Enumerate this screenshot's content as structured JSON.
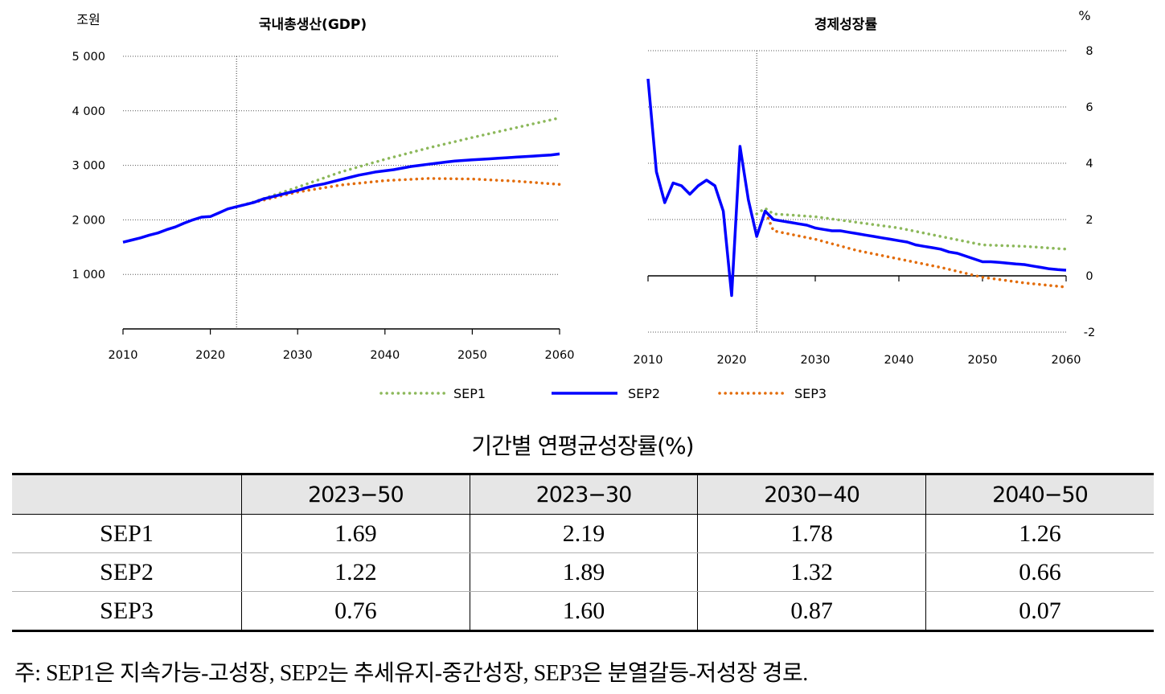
{
  "chart_data": [
    {
      "type": "line",
      "title": "국내총생산(GDP)",
      "unit": "조원",
      "ylim": [
        0,
        5000
      ],
      "yticks": [
        "1 000",
        "2 000",
        "3 000",
        "4 000",
        "5 000"
      ],
      "xticks": [
        "2010",
        "2020",
        "2030",
        "2040",
        "2050",
        "2060"
      ],
      "vline_x": 2023,
      "series": [
        {
          "name": "SEP1",
          "color": "#8cb85a",
          "style": "dotted",
          "x": [
            2023,
            2025,
            2030,
            2035,
            2040,
            2045,
            2050,
            2055,
            2060
          ],
          "y": [
            2240,
            2330,
            2600,
            2880,
            3110,
            3320,
            3510,
            3690,
            3870
          ]
        },
        {
          "name": "SEP2",
          "color": "#0000ff",
          "style": "solid",
          "x": [
            2010,
            2011,
            2012,
            2013,
            2014,
            2015,
            2016,
            2017,
            2018,
            2019,
            2020,
            2021,
            2022,
            2023,
            2024,
            2025,
            2026,
            2027,
            2028,
            2029,
            2030,
            2031,
            2032,
            2033,
            2034,
            2035,
            2036,
            2037,
            2038,
            2039,
            2040,
            2041,
            2042,
            2043,
            2044,
            2045,
            2046,
            2047,
            2048,
            2049,
            2050,
            2051,
            2052,
            2053,
            2054,
            2055,
            2056,
            2057,
            2058,
            2059,
            2060
          ],
          "y": [
            1590,
            1630,
            1670,
            1720,
            1760,
            1820,
            1870,
            1940,
            2000,
            2050,
            2060,
            2130,
            2200,
            2240,
            2280,
            2320,
            2380,
            2420,
            2460,
            2500,
            2540,
            2590,
            2630,
            2660,
            2700,
            2740,
            2780,
            2820,
            2850,
            2880,
            2900,
            2920,
            2950,
            2980,
            3000,
            3020,
            3040,
            3060,
            3080,
            3090,
            3100,
            3110,
            3120,
            3130,
            3140,
            3150,
            3160,
            3170,
            3180,
            3190,
            3210
          ]
        },
        {
          "name": "SEP3",
          "color": "#e36c0a",
          "style": "dotted",
          "x": [
            2023,
            2025,
            2030,
            2035,
            2040,
            2045,
            2050,
            2055,
            2060
          ],
          "y": [
            2240,
            2320,
            2510,
            2640,
            2720,
            2760,
            2750,
            2710,
            2650
          ]
        }
      ]
    },
    {
      "type": "line",
      "title": "경제성장률",
      "unit": "%",
      "ylim": [
        -2,
        8
      ],
      "yticks": [
        "-2",
        "0",
        "2",
        "4",
        "6",
        "8"
      ],
      "xticks": [
        "2010",
        "2020",
        "2030",
        "2040",
        "2050",
        "2060"
      ],
      "vline_x": 2023,
      "series": [
        {
          "name": "SEP1",
          "color": "#8cb85a",
          "style": "dotted",
          "x": [
            2023,
            2024,
            2025,
            2030,
            2035,
            2040,
            2045,
            2050,
            2055,
            2060
          ],
          "y": [
            2.2,
            2.4,
            2.2,
            2.1,
            1.9,
            1.7,
            1.4,
            1.1,
            1.05,
            0.95
          ]
        },
        {
          "name": "SEP2",
          "color": "#0000ff",
          "style": "solid",
          "x": [
            2010,
            2011,
            2012,
            2013,
            2014,
            2015,
            2016,
            2017,
            2018,
            2019,
            2020,
            2021,
            2022,
            2023,
            2024,
            2025,
            2026,
            2027,
            2028,
            2029,
            2030,
            2031,
            2032,
            2033,
            2034,
            2035,
            2036,
            2037,
            2038,
            2039,
            2040,
            2041,
            2042,
            2043,
            2044,
            2045,
            2046,
            2047,
            2048,
            2049,
            2050,
            2051,
            2052,
            2053,
            2054,
            2055,
            2056,
            2057,
            2058,
            2059,
            2060
          ],
          "y": [
            7.0,
            3.7,
            2.6,
            3.3,
            3.2,
            2.9,
            3.2,
            3.4,
            3.2,
            2.3,
            -0.7,
            4.6,
            2.7,
            1.4,
            2.3,
            2.0,
            1.95,
            1.9,
            1.85,
            1.8,
            1.7,
            1.65,
            1.6,
            1.6,
            1.55,
            1.5,
            1.45,
            1.4,
            1.35,
            1.3,
            1.25,
            1.2,
            1.1,
            1.05,
            1.0,
            0.95,
            0.85,
            0.8,
            0.7,
            0.6,
            0.5,
            0.5,
            0.48,
            0.45,
            0.42,
            0.4,
            0.35,
            0.3,
            0.25,
            0.22,
            0.2
          ]
        },
        {
          "name": "SEP3",
          "color": "#e36c0a",
          "style": "dotted",
          "x": [
            2023,
            2024,
            2025,
            2030,
            2035,
            2040,
            2045,
            2050,
            2055,
            2060
          ],
          "y": [
            1.4,
            2.3,
            1.6,
            1.3,
            0.9,
            0.6,
            0.3,
            -0.05,
            -0.25,
            -0.4
          ]
        }
      ]
    }
  ],
  "legend": [
    "SEP1",
    "SEP2",
    "SEP3"
  ],
  "table": {
    "title": "기간별 연평균성장률(%)",
    "columns": [
      "",
      "2023−50",
      "2023−30",
      "2030−40",
      "2040−50"
    ],
    "rows": [
      {
        "label": "SEP1",
        "values": [
          "1.69",
          "2.19",
          "1.78",
          "1.26"
        ]
      },
      {
        "label": "SEP2",
        "values": [
          "1.22",
          "1.89",
          "1.32",
          "0.66"
        ]
      },
      {
        "label": "SEP3",
        "values": [
          "0.76",
          "1.60",
          "0.87",
          "0.07"
        ]
      }
    ]
  },
  "note": "주: SEP1은 지속가능-고성장, SEP2는 추세유지-중간성장, SEP3은 분열갈등-저성장 경로."
}
